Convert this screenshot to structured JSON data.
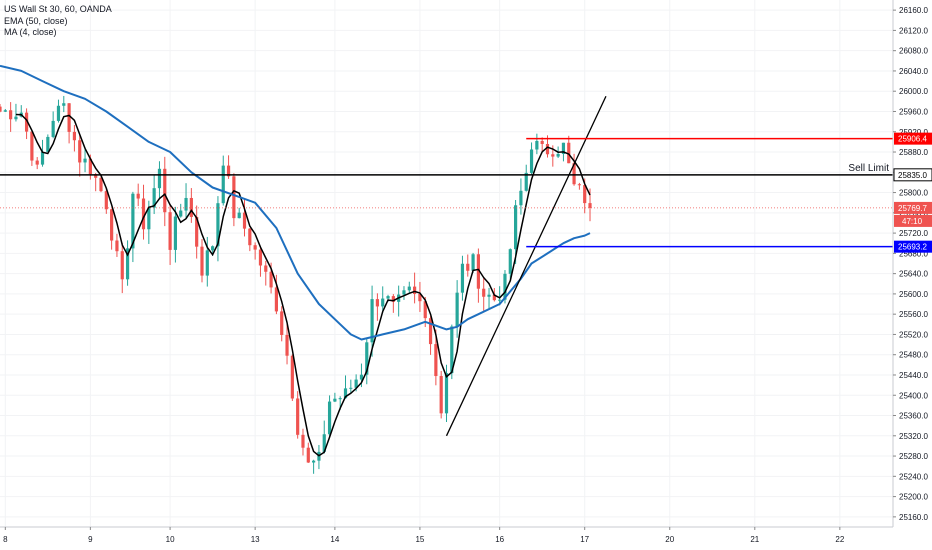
{
  "legend": {
    "symbol": "US Wall St 30, 60, OANDA",
    "ema": "EMA (50, close)",
    "ma": "MA (4, close)"
  },
  "colors": {
    "up": "#26a69a",
    "down": "#ef5350",
    "ema": "#1e6fbf",
    "ma": "#000000",
    "resistance": "#ff0000",
    "support": "#0000ff",
    "sell_limit": "#000000",
    "current_price": "#ef5350",
    "grid": "#f2f3f5"
  },
  "chart_data": {
    "type": "candlestick",
    "title": "",
    "xlabel": "",
    "ylabel": "",
    "ylim": [
      25140,
      26180
    ],
    "xlim": [
      0,
      168
    ],
    "y_ticks": [
      25160,
      25200,
      25240,
      25280,
      25320,
      25360,
      25400,
      25440,
      25480,
      25520,
      25560,
      25600,
      25640,
      25680,
      25720,
      25760,
      25800,
      25840,
      25880,
      25920,
      25960,
      26000,
      26040,
      26080,
      26120,
      26160
    ],
    "x_ticks": [
      {
        "i": 1,
        "label": "8"
      },
      {
        "i": 17,
        "label": "9"
      },
      {
        "i": 32,
        "label": "10"
      },
      {
        "i": 48,
        "label": "13"
      },
      {
        "i": 63,
        "label": "14"
      },
      {
        "i": 79,
        "label": "15"
      },
      {
        "i": 94,
        "label": "16"
      },
      {
        "i": 110,
        "label": "17"
      },
      {
        "i": 126,
        "label": "20"
      },
      {
        "i": 142,
        "label": "21"
      },
      {
        "i": 158,
        "label": "22"
      }
    ],
    "price_path": [
      [
        0,
        25960
      ],
      [
        4,
        25960
      ],
      [
        7,
        25840
      ],
      [
        10,
        25950
      ],
      [
        12,
        25970
      ],
      [
        15,
        25870
      ],
      [
        17,
        25850
      ],
      [
        20,
        25780
      ],
      [
        23,
        25610
      ],
      [
        25,
        25800
      ],
      [
        27,
        25740
      ],
      [
        30,
        25840
      ],
      [
        32,
        25700
      ],
      [
        35,
        25800
      ],
      [
        38,
        25650
      ],
      [
        40,
        25700
      ],
      [
        42,
        25870
      ],
      [
        44,
        25760
      ],
      [
        46,
        25730
      ],
      [
        49,
        25660
      ],
      [
        52,
        25580
      ],
      [
        54,
        25480
      ],
      [
        56,
        25340
      ],
      [
        58,
        25260
      ],
      [
        60,
        25270
      ],
      [
        62,
        25390
      ],
      [
        65,
        25400
      ],
      [
        68,
        25450
      ],
      [
        70,
        25580
      ],
      [
        72,
        25600
      ],
      [
        74,
        25570
      ],
      [
        77,
        25600
      ],
      [
        79,
        25580
      ],
      [
        81,
        25520
      ],
      [
        83,
        25370
      ],
      [
        85,
        25540
      ],
      [
        87,
        25650
      ],
      [
        89,
        25660
      ],
      [
        91,
        25600
      ],
      [
        93,
        25590
      ],
      [
        95,
        25620
      ],
      [
        97,
        25760
      ],
      [
        99,
        25840
      ],
      [
        100,
        25900
      ],
      [
        102,
        25880
      ],
      [
        104,
        25890
      ],
      [
        106,
        25890
      ],
      [
        108,
        25810
      ],
      [
        110,
        25790
      ],
      [
        111,
        25780
      ]
    ],
    "ema_path": [
      [
        0,
        26050
      ],
      [
        4,
        26040
      ],
      [
        8,
        26020
      ],
      [
        12,
        26000
      ],
      [
        16,
        25985
      ],
      [
        20,
        25960
      ],
      [
        24,
        25930
      ],
      [
        28,
        25900
      ],
      [
        32,
        25880
      ],
      [
        36,
        25840
      ],
      [
        40,
        25810
      ],
      [
        44,
        25795
      ],
      [
        48,
        25780
      ],
      [
        52,
        25730
      ],
      [
        56,
        25640
      ],
      [
        60,
        25580
      ],
      [
        64,
        25540
      ],
      [
        66,
        25520
      ],
      [
        68,
        25510
      ],
      [
        70,
        25515
      ],
      [
        72,
        25520
      ],
      [
        76,
        25530
      ],
      [
        80,
        25545
      ],
      [
        84,
        25530
      ],
      [
        86,
        25535
      ],
      [
        88,
        25550
      ],
      [
        90,
        25560
      ],
      [
        94,
        25580
      ],
      [
        98,
        25630
      ],
      [
        100,
        25660
      ],
      [
        103,
        25680
      ],
      [
        106,
        25700
      ],
      [
        108,
        25710
      ],
      [
        110,
        25715
      ],
      [
        111,
        25720
      ]
    ],
    "horizontal_lines": [
      {
        "name": "sell-limit",
        "value": 25835.0,
        "label": "25835.0",
        "text": "Sell Limit",
        "color": "#000000",
        "from_i": 0,
        "dashed": false
      },
      {
        "name": "resistance",
        "value": 25906.4,
        "label": "25906.4",
        "color": "#ff0000",
        "from_i": 99,
        "dashed": false
      },
      {
        "name": "support",
        "value": 25693.2,
        "label": "25693.2",
        "color": "#0000ff",
        "from_i": 99,
        "dashed": false
      },
      {
        "name": "current-price",
        "value": 25769.7,
        "label": "25769.7",
        "color": "#ef5350",
        "from_i": 0,
        "dashed": true
      }
    ],
    "countdown": "47:10",
    "trendlines": [
      {
        "name": "trendline",
        "from": [
          84,
          25320
        ],
        "to": [
          114,
          25990
        ]
      }
    ]
  }
}
